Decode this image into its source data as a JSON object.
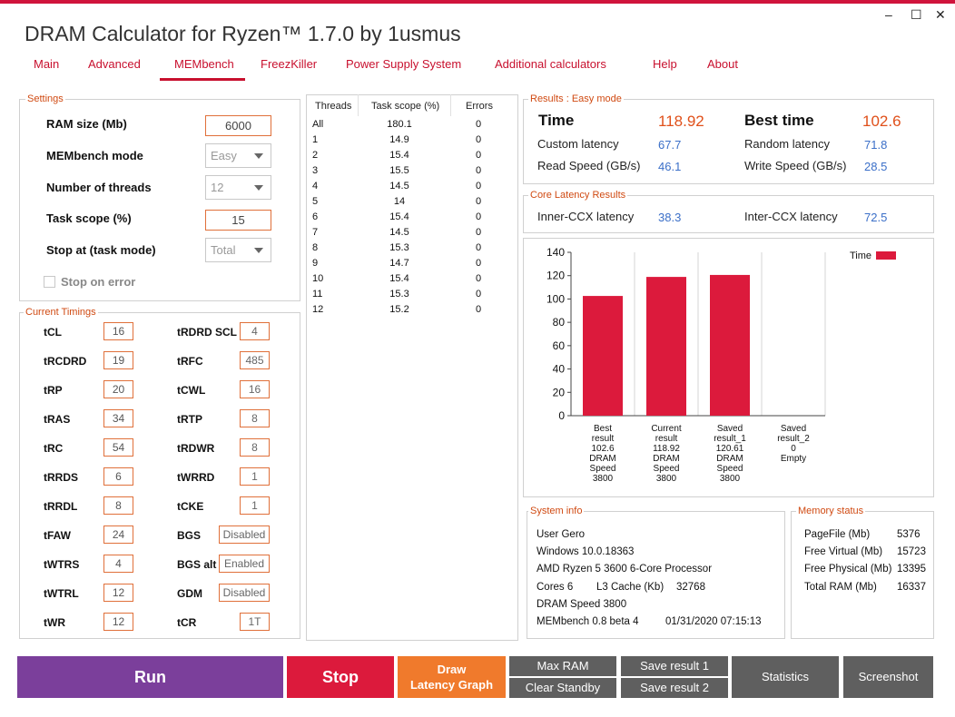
{
  "window": {
    "title": "DRAM Calculator for Ryzen™ 1.7.0 by 1usmus",
    "minimize": "–",
    "maximize": "☐",
    "close": "✕"
  },
  "nav": [
    "Main",
    "Advanced",
    "MEMbench",
    "FreezKiller",
    "Power Supply System",
    "Additional calculators",
    "Help",
    "About"
  ],
  "settings": {
    "legend": "Settings",
    "ram_label": "RAM size (Mb)",
    "ram_value": "6000",
    "mode_label": "MEMbench mode",
    "mode_value": "Easy",
    "threads_label": "Number of threads",
    "threads_value": "12",
    "scope_label": "Task scope (%)",
    "scope_value": "15",
    "stop_label": "Stop at (task mode)",
    "stop_value": "Total",
    "stop_error_label": "Stop on error"
  },
  "timings": {
    "legend": "Current Timings",
    "left": [
      {
        "name": "tCL",
        "value": "16"
      },
      {
        "name": "tRCDRD",
        "value": "19"
      },
      {
        "name": "tRP",
        "value": "20"
      },
      {
        "name": "tRAS",
        "value": "34"
      },
      {
        "name": "tRC",
        "value": "54"
      },
      {
        "name": "tRRDS",
        "value": "6"
      },
      {
        "name": "tRRDL",
        "value": "8"
      },
      {
        "name": "tFAW",
        "value": "24"
      },
      {
        "name": "tWTRS",
        "value": "4"
      },
      {
        "name": "tWTRL",
        "value": "12"
      },
      {
        "name": "tWR",
        "value": "12"
      }
    ],
    "right": [
      {
        "name": "tRDRD SCL",
        "value": "4"
      },
      {
        "name": "tRFC",
        "value": "485"
      },
      {
        "name": "tCWL",
        "value": "16"
      },
      {
        "name": "tRTP",
        "value": "8"
      },
      {
        "name": "tRDWR",
        "value": "8"
      },
      {
        "name": "tWRRD",
        "value": "1"
      },
      {
        "name": "tCKE",
        "value": "1"
      },
      {
        "name": "BGS",
        "value": "Disabled"
      },
      {
        "name": "BGS alt",
        "value": "Enabled"
      },
      {
        "name": "GDM",
        "value": "Disabled"
      },
      {
        "name": "tCR",
        "value": "1T"
      }
    ]
  },
  "threads_table": {
    "headers": [
      "Threads",
      "Task scope (%)",
      "Errors"
    ],
    "rows": [
      [
        "All",
        "180.1",
        "0"
      ],
      [
        "1",
        "14.9",
        "0"
      ],
      [
        "2",
        "15.4",
        "0"
      ],
      [
        "3",
        "15.5",
        "0"
      ],
      [
        "4",
        "14.5",
        "0"
      ],
      [
        "5",
        "14",
        "0"
      ],
      [
        "6",
        "15.4",
        "0"
      ],
      [
        "7",
        "14.5",
        "0"
      ],
      [
        "8",
        "15.3",
        "0"
      ],
      [
        "9",
        "14.7",
        "0"
      ],
      [
        "10",
        "15.4",
        "0"
      ],
      [
        "11",
        "15.3",
        "0"
      ],
      [
        "12",
        "15.2",
        "0"
      ]
    ]
  },
  "results": {
    "legend": "Results : Easy mode",
    "time_label": "Time",
    "time_value": "118.92",
    "best_label": "Best time",
    "best_value": "102.6",
    "custom_label": "Custom latency",
    "custom_value": "67.7",
    "random_label": "Random latency",
    "random_value": "71.8",
    "read_label": "Read Speed (GB/s)",
    "read_value": "46.1",
    "write_label": "Write Speed (GB/s)",
    "write_value": "28.5"
  },
  "core_latency": {
    "legend": "Core Latency Results",
    "inner_label": "Inner-CCX latency",
    "inner_value": "38.3",
    "inter_label": "Inter-CCX latency",
    "inter_value": "72.5"
  },
  "chart_data": {
    "type": "bar",
    "categories": [
      "Best result 102.6 DRAM Speed 3800",
      "Current result 118.92 DRAM Speed 3800",
      "Saved result_1 120.61 DRAM Speed 3800",
      "Saved result_2 0 Empty"
    ],
    "category_lines": [
      [
        "Best",
        "result",
        "102.6",
        "DRAM",
        "Speed",
        "3800"
      ],
      [
        "Current",
        "result",
        "118.92",
        "DRAM",
        "Speed",
        "3800"
      ],
      [
        "Saved",
        "result_1",
        "120.61",
        "DRAM",
        "Speed",
        "3800"
      ],
      [
        "Saved",
        "result_2",
        "0",
        "Empty"
      ]
    ],
    "series": [
      {
        "name": "Time",
        "values": [
          102.6,
          118.92,
          120.61,
          0
        ],
        "color": "#dc1a3c"
      }
    ],
    "yticks": [
      "0",
      "20",
      "40",
      "60",
      "80",
      "100",
      "120",
      "140"
    ],
    "ylim": [
      0,
      140
    ],
    "grid": "vertical only",
    "legend_position": "top-right"
  },
  "system_info": {
    "legend": "System info",
    "user": "User Gero",
    "os": "Windows 10.0.18363",
    "cpu": "AMD Ryzen 5 3600 6-Core Processor",
    "cores": "Cores 6",
    "l3": "L3 Cache (Kb)",
    "l3_value": "32768",
    "dram": "DRAM Speed 3800",
    "membench": "MEMbench 0.8 beta 4",
    "datetime": "01/31/2020 07:15:13"
  },
  "memory_status": {
    "legend": "Memory status",
    "rows": [
      {
        "label": "PageFile (Mb)",
        "value": "5376"
      },
      {
        "label": "Free Virtual (Mb)",
        "value": "15723"
      },
      {
        "label": "Free Physical (Mb)",
        "value": "13395"
      },
      {
        "label": "Total RAM (Mb)",
        "value": "16337"
      }
    ]
  },
  "buttons": {
    "run": "Run",
    "stop": "Stop",
    "draw1": "Draw",
    "draw2": "Latency Graph",
    "max_ram": "Max RAM",
    "clear_standby": "Clear Standby",
    "save1": "Save result 1",
    "save2": "Save result 2",
    "statistics": "Statistics",
    "screenshot": "Screenshot"
  },
  "colors": {
    "accent": "#c8102e",
    "run": "#7b3f9b",
    "stop": "#dc1a3c",
    "draw": "#f07a2c",
    "dark_button": "#5f5f5f",
    "legend_orange": "#d04a12",
    "value_blue": "#3b6fc8"
  }
}
